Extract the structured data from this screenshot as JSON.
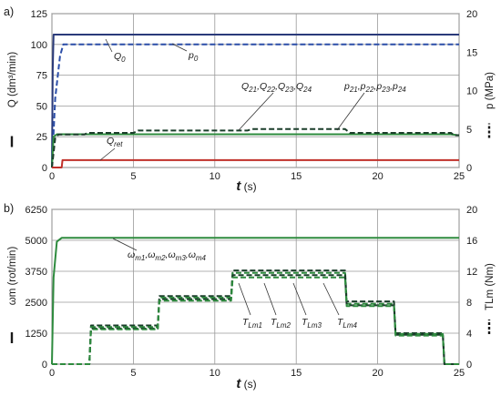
{
  "chart_data": [
    {
      "panel_label": "a)",
      "type": "line",
      "xlabel": "t (s)",
      "ylabel": "Q (dm³/min)",
      "ylabel_right": "p (MPa)",
      "xlim": [
        0,
        25
      ],
      "ylim": [
        0,
        125
      ],
      "ylim_right": [
        0,
        20
      ],
      "x_ticks": [
        0,
        5,
        10,
        15,
        20,
        25
      ],
      "y_ticks": [
        0,
        25,
        50,
        75,
        100,
        125
      ],
      "y_ticks_right": [
        0,
        5,
        10,
        15,
        20
      ],
      "grid": true,
      "series": [
        {
          "name": "Q0",
          "axis": "left",
          "style": "solid",
          "color": "#2a3a7a",
          "x": [
            0,
            0.05,
            0.1,
            0.3,
            25
          ],
          "y": [
            0,
            80,
            108,
            108,
            108
          ]
        },
        {
          "name": "p0",
          "axis": "right",
          "style": "dashed",
          "color": "#2a4da8",
          "x": [
            0,
            0.2,
            0.5,
            0.7,
            25
          ],
          "y": [
            0,
            9,
            14.5,
            16,
            16
          ]
        },
        {
          "name": "Q21,Q22,Q23,Q24",
          "axis": "left",
          "style": "solid",
          "color": "#2e8b3e",
          "x": [
            0,
            0.1,
            0.3,
            24.5,
            25
          ],
          "y": [
            0,
            25,
            27,
            27,
            26
          ]
        },
        {
          "name": "p21,p22,p23,p24",
          "axis": "right",
          "style": "dashed",
          "color": "#1a3d2a",
          "x": [
            0,
            0.2,
            0.4,
            2.0,
            2.2,
            5.0,
            5.3,
            12.0,
            12.3,
            18.0,
            18.3,
            24.5,
            24.7,
            25
          ],
          "y": [
            0,
            3.8,
            4.3,
            4.3,
            4.5,
            4.5,
            4.8,
            4.8,
            5.0,
            5.0,
            4.5,
            4.5,
            4.2,
            4.2
          ]
        },
        {
          "name": "Qret",
          "axis": "left",
          "style": "solid",
          "color": "#c0302a",
          "x": [
            0,
            0.6,
            0.65,
            25
          ],
          "y": [
            0,
            0,
            6,
            6
          ]
        }
      ],
      "annotations": [
        "Q0",
        "p0",
        "Q21,Q22,Q23,Q24",
        "p21,p22,p23,p24",
        "Qret"
      ]
    },
    {
      "panel_label": "b)",
      "type": "line",
      "xlabel": "t (s)",
      "ylabel": "ωm (rot/min)",
      "ylabel_right": "TLm (Nm)",
      "xlim": [
        0,
        25
      ],
      "ylim": [
        0,
        6250
      ],
      "ylim_right": [
        0,
        20
      ],
      "x_ticks": [
        0,
        5,
        10,
        15,
        20,
        25
      ],
      "y_ticks": [
        0,
        1250,
        2500,
        3750,
        5000,
        6250
      ],
      "y_ticks_right": [
        0,
        4,
        8,
        12,
        16,
        20
      ],
      "grid": true,
      "series": [
        {
          "name": "ωm1,ωm2,ωm3,ωm4",
          "axis": "left",
          "style": "solid",
          "color": "#2e8b3e",
          "x": [
            0,
            0.1,
            0.3,
            0.6,
            25
          ],
          "y": [
            0,
            3500,
            4950,
            5100,
            5100
          ]
        },
        {
          "name": "TLm1",
          "axis": "right",
          "style": "dashed",
          "color": "#1a3d2a",
          "x": [
            0,
            2.3,
            2.4,
            6.5,
            6.6,
            11.0,
            11.1,
            18.0,
            18.1,
            21.0,
            21.1,
            24.0,
            24.1,
            25
          ],
          "y": [
            0,
            0,
            5,
            5,
            8.8,
            8.8,
            12.1,
            12.1,
            8.1,
            8.1,
            4.0,
            4.0,
            0,
            0
          ]
        },
        {
          "name": "TLm2",
          "axis": "right",
          "style": "dashed",
          "color": "#2e8b3e",
          "x": [
            0,
            2.3,
            2.4,
            6.5,
            6.6,
            11.0,
            11.1,
            18.0,
            18.1,
            21.0,
            21.1,
            24.0,
            24.1,
            25
          ],
          "y": [
            0,
            0,
            4.8,
            4.8,
            8.6,
            8.6,
            11.8,
            11.8,
            7.8,
            7.8,
            3.9,
            3.9,
            0,
            0
          ]
        },
        {
          "name": "TLm3",
          "axis": "right",
          "style": "dashed",
          "color": "#1a3d2a",
          "x": [
            0,
            2.3,
            2.4,
            6.5,
            6.6,
            11.0,
            11.1,
            18.0,
            18.1,
            21.0,
            21.1,
            24.0,
            24.1,
            25
          ],
          "y": [
            0,
            0,
            4.6,
            4.6,
            8.4,
            8.4,
            11.5,
            11.5,
            7.6,
            7.6,
            3.8,
            3.8,
            0,
            0
          ]
        },
        {
          "name": "TLm4",
          "axis": "right",
          "style": "dashed",
          "color": "#2e8b3e",
          "x": [
            0,
            2.3,
            2.4,
            6.5,
            6.6,
            11.0,
            11.1,
            18.0,
            18.1,
            21.0,
            21.1,
            24.0,
            24.1,
            25
          ],
          "y": [
            0,
            0,
            4.5,
            4.5,
            8.2,
            8.2,
            11.2,
            11.2,
            7.5,
            7.5,
            3.7,
            3.7,
            0,
            0
          ]
        }
      ],
      "annotations": [
        "ωm1,ωm2,ωm3,ωm4",
        "TLm1",
        "TLm2",
        "TLm3",
        "TLm4"
      ]
    }
  ]
}
